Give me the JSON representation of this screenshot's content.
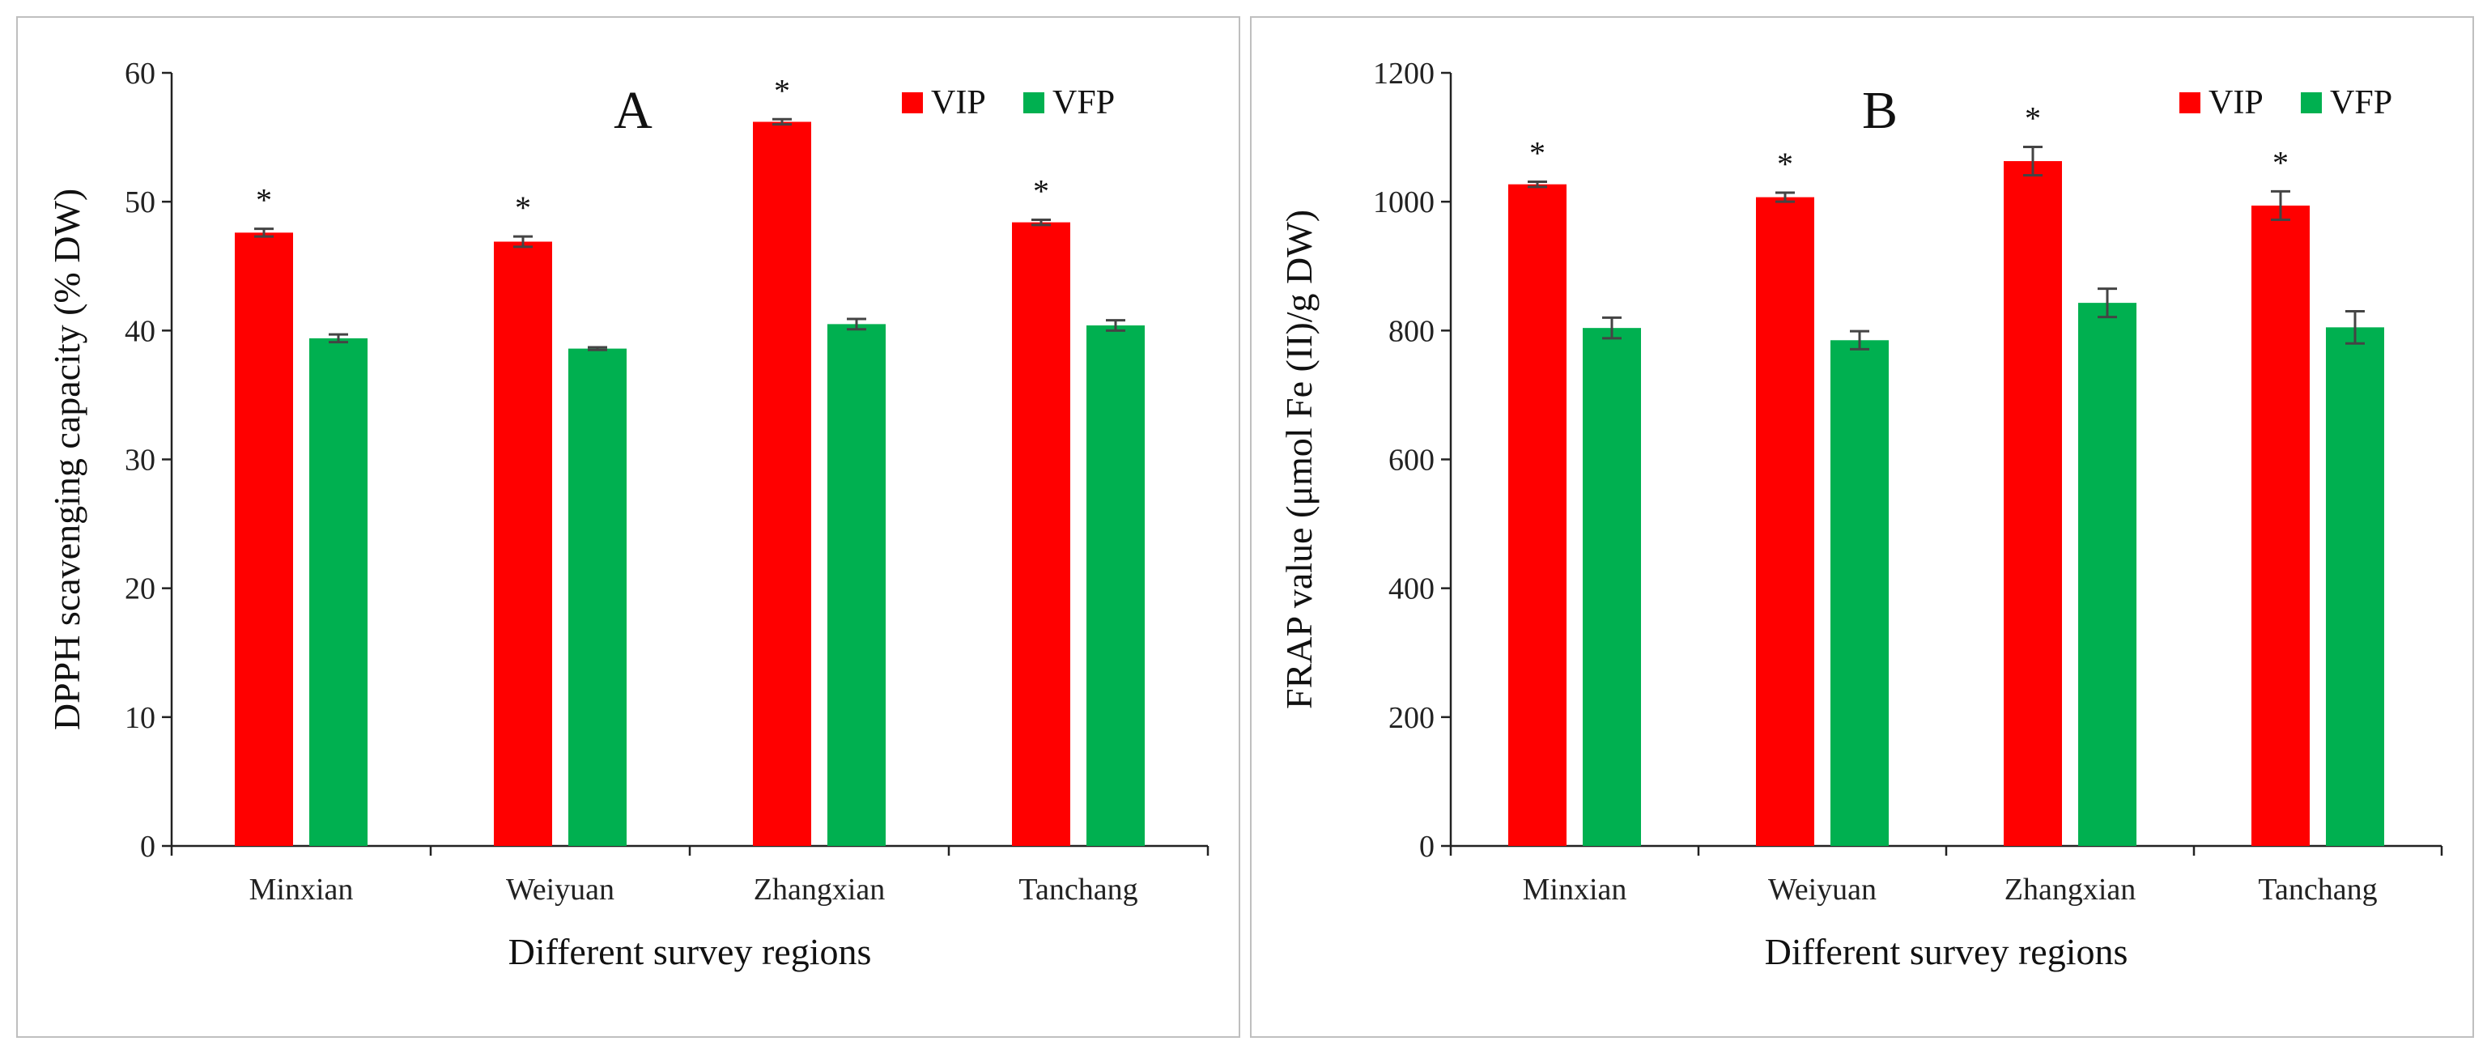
{
  "chart_data": [
    {
      "type": "bar",
      "panel_label": "A",
      "xlabel": "Different survey regions",
      "ylabel": "DPPH scavenging capacity (% DW)",
      "categories": [
        "Minxian",
        "Weiyuan",
        "Zhangxian",
        "Tanchang"
      ],
      "ylim": [
        0,
        60
      ],
      "yticks": [
        0,
        10,
        20,
        30,
        40,
        50,
        60
      ],
      "series": [
        {
          "name": "VIP",
          "color": "#ff0000",
          "values": [
            47.6,
            46.9,
            56.2,
            48.4
          ],
          "errors": [
            0.3,
            0.4,
            0.2,
            0.2
          ],
          "significance": [
            "*",
            "*",
            "*",
            "*"
          ]
        },
        {
          "name": "VFP",
          "color": "#00b050",
          "values": [
            39.4,
            38.6,
            40.5,
            40.4
          ],
          "errors": [
            0.3,
            0.1,
            0.4,
            0.4
          ],
          "significance": [
            "",
            "",
            "",
            ""
          ]
        }
      ],
      "legend_position": "top-right"
    },
    {
      "type": "bar",
      "panel_label": "B",
      "xlabel": "Different survey regions",
      "ylabel": "FRAP value (μmol Fe (II)/g DW)",
      "categories": [
        "Minxian",
        "Weiyuan",
        "Zhangxian",
        "Tanchang"
      ],
      "ylim": [
        0,
        1200
      ],
      "yticks": [
        0,
        200,
        400,
        600,
        800,
        1000,
        1200
      ],
      "series": [
        {
          "name": "VIP",
          "color": "#ff0000",
          "values": [
            1027,
            1007,
            1063,
            994
          ],
          "errors": [
            4,
            7,
            22,
            22
          ],
          "significance": [
            "*",
            "*",
            "*",
            "*"
          ]
        },
        {
          "name": "VFP",
          "color": "#00b050",
          "values": [
            804,
            785,
            843,
            805
          ],
          "errors": [
            16,
            14,
            22,
            25
          ],
          "significance": [
            "",
            "",
            "",
            ""
          ]
        }
      ],
      "legend_position": "top-right"
    }
  ]
}
